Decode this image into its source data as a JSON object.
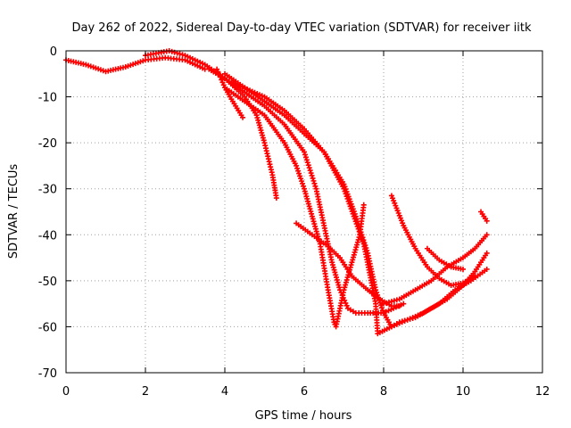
{
  "chart_data": {
    "type": "scatter",
    "title": "Day 262 of 2022, Sidereal Day-to-day VTEC variation (SDTVAR) for receiver iitk",
    "xlabel": "GPS time / hours",
    "ylabel": "SDTVAR / TECUs",
    "xlim": [
      0,
      12
    ],
    "ylim": [
      -70,
      0
    ],
    "xticks": [
      "0",
      "2",
      "4",
      "6",
      "8",
      "10",
      "12"
    ],
    "yticks": [
      "0",
      "-10",
      "-20",
      "-30",
      "-40",
      "-50",
      "-60",
      "-70"
    ],
    "grid": true,
    "marker": "+",
    "color": "#ff0000",
    "series": [
      {
        "points": [
          [
            0,
            -2
          ],
          [
            0.5,
            -3
          ],
          [
            1,
            -4.5
          ],
          [
            1.5,
            -3.5
          ],
          [
            2,
            -2
          ],
          [
            2.5,
            -1.5
          ],
          [
            3,
            -2
          ],
          [
            3.5,
            -4
          ]
        ]
      },
      {
        "points": [
          [
            2,
            -1
          ],
          [
            2.6,
            0
          ],
          [
            3,
            -1
          ],
          [
            3.5,
            -3
          ],
          [
            4,
            -6
          ],
          [
            4.5,
            -10
          ],
          [
            4.8,
            -14
          ],
          [
            5,
            -20
          ],
          [
            5.2,
            -27
          ],
          [
            5.3,
            -32
          ]
        ]
      },
      {
        "points": [
          [
            3.8,
            -4
          ],
          [
            4,
            -8
          ],
          [
            4.2,
            -11
          ],
          [
            4.45,
            -14.5
          ]
        ]
      },
      {
        "points": [
          [
            3.6,
            -4
          ],
          [
            4,
            -6
          ],
          [
            4.5,
            -9
          ],
          [
            5,
            -12
          ],
          [
            5.5,
            -16
          ],
          [
            6,
            -22
          ],
          [
            6.3,
            -30
          ],
          [
            6.5,
            -38
          ],
          [
            6.7,
            -46
          ],
          [
            6.9,
            -52
          ],
          [
            7.1,
            -56
          ],
          [
            7.3,
            -57
          ],
          [
            7.6,
            -57
          ],
          [
            8,
            -57
          ],
          [
            8.5,
            -55
          ]
        ]
      },
      {
        "points": [
          [
            4,
            -8
          ],
          [
            4.5,
            -11
          ],
          [
            5,
            -14
          ],
          [
            5.5,
            -20
          ],
          [
            5.8,
            -25
          ],
          [
            6,
            -30
          ],
          [
            6.2,
            -36
          ],
          [
            6.4,
            -42
          ],
          [
            6.6,
            -52
          ],
          [
            6.75,
            -59
          ],
          [
            6.8,
            -60
          ],
          [
            6.9,
            -56
          ],
          [
            7,
            -52
          ],
          [
            7.2,
            -46
          ],
          [
            7.4,
            -40
          ],
          [
            7.5,
            -33.5
          ]
        ]
      },
      {
        "points": [
          [
            5.8,
            -37.5
          ],
          [
            6.2,
            -40
          ],
          [
            6.6,
            -42.5
          ],
          [
            6.9,
            -45
          ],
          [
            7.2,
            -49
          ],
          [
            7.6,
            -52
          ],
          [
            7.9,
            -54
          ],
          [
            8.2,
            -55.5
          ],
          [
            8.4,
            -55.5
          ]
        ]
      },
      {
        "points": [
          [
            4,
            -5
          ],
          [
            4.5,
            -8
          ],
          [
            5,
            -11
          ],
          [
            5.5,
            -14
          ],
          [
            6,
            -18
          ],
          [
            6.5,
            -22
          ],
          [
            7,
            -29
          ],
          [
            7.3,
            -36
          ],
          [
            7.6,
            -44
          ],
          [
            7.8,
            -52
          ],
          [
            8,
            -57
          ],
          [
            8.2,
            -60
          ],
          [
            8.4,
            -59
          ],
          [
            8.8,
            -58
          ],
          [
            9.2,
            -56
          ],
          [
            9.6,
            -54
          ],
          [
            10,
            -51
          ],
          [
            10.3,
            -48
          ],
          [
            10.6,
            -44
          ]
        ]
      },
      {
        "points": [
          [
            4.2,
            -7
          ],
          [
            5,
            -10
          ],
          [
            5.5,
            -13
          ],
          [
            6,
            -17
          ],
          [
            6.5,
            -22
          ],
          [
            7,
            -30
          ],
          [
            7.5,
            -42
          ],
          [
            7.8,
            -55
          ],
          [
            7.85,
            -61.5
          ],
          [
            8.2,
            -60
          ],
          [
            8.6,
            -58.5
          ],
          [
            9,
            -57
          ],
          [
            9.4,
            -55
          ],
          [
            9.8,
            -52
          ],
          [
            10.2,
            -50
          ],
          [
            10.6,
            -47.5
          ]
        ]
      },
      {
        "points": [
          [
            8.2,
            -31.5
          ],
          [
            8.5,
            -38
          ],
          [
            8.8,
            -43
          ],
          [
            9.1,
            -47
          ],
          [
            9.4,
            -49.5
          ],
          [
            9.7,
            -51
          ],
          [
            10,
            -50.5
          ],
          [
            10.3,
            -49
          ]
        ]
      },
      {
        "points": [
          [
            8,
            -55
          ],
          [
            8.4,
            -54
          ],
          [
            8.8,
            -52
          ],
          [
            9.2,
            -50
          ],
          [
            9.6,
            -47
          ],
          [
            10,
            -45
          ],
          [
            10.3,
            -43
          ],
          [
            10.6,
            -40
          ]
        ]
      },
      {
        "points": [
          [
            9.1,
            -43
          ],
          [
            9.4,
            -45.5
          ],
          [
            9.7,
            -47
          ],
          [
            10,
            -47.5
          ]
        ]
      },
      {
        "points": [
          [
            10.45,
            -35
          ],
          [
            10.6,
            -37
          ]
        ]
      }
    ]
  }
}
